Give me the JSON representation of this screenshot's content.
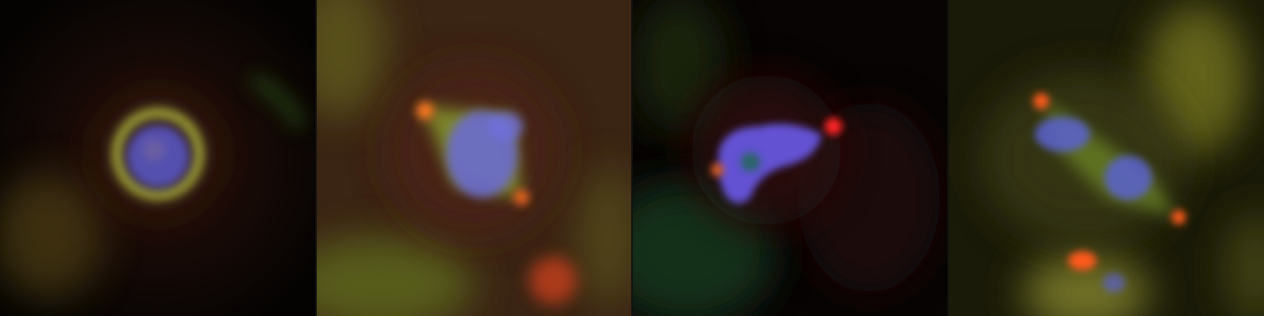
{
  "figure": {
    "panels": [
      {
        "label": "panel-1-ring-cell"
      },
      {
        "label": "panel-2-bipolar-spindle"
      },
      {
        "label": "panel-3-condensed-chromosomes"
      },
      {
        "label": "panel-4-anaphase-spindle"
      }
    ],
    "colors": {
      "dna": "#6a6cff",
      "microtubules": "#7fc23a",
      "centrosome": "#ff5a1e",
      "background_red": "#3a1a10",
      "cytoplasm_yellow": "#6b6a1a"
    }
  }
}
